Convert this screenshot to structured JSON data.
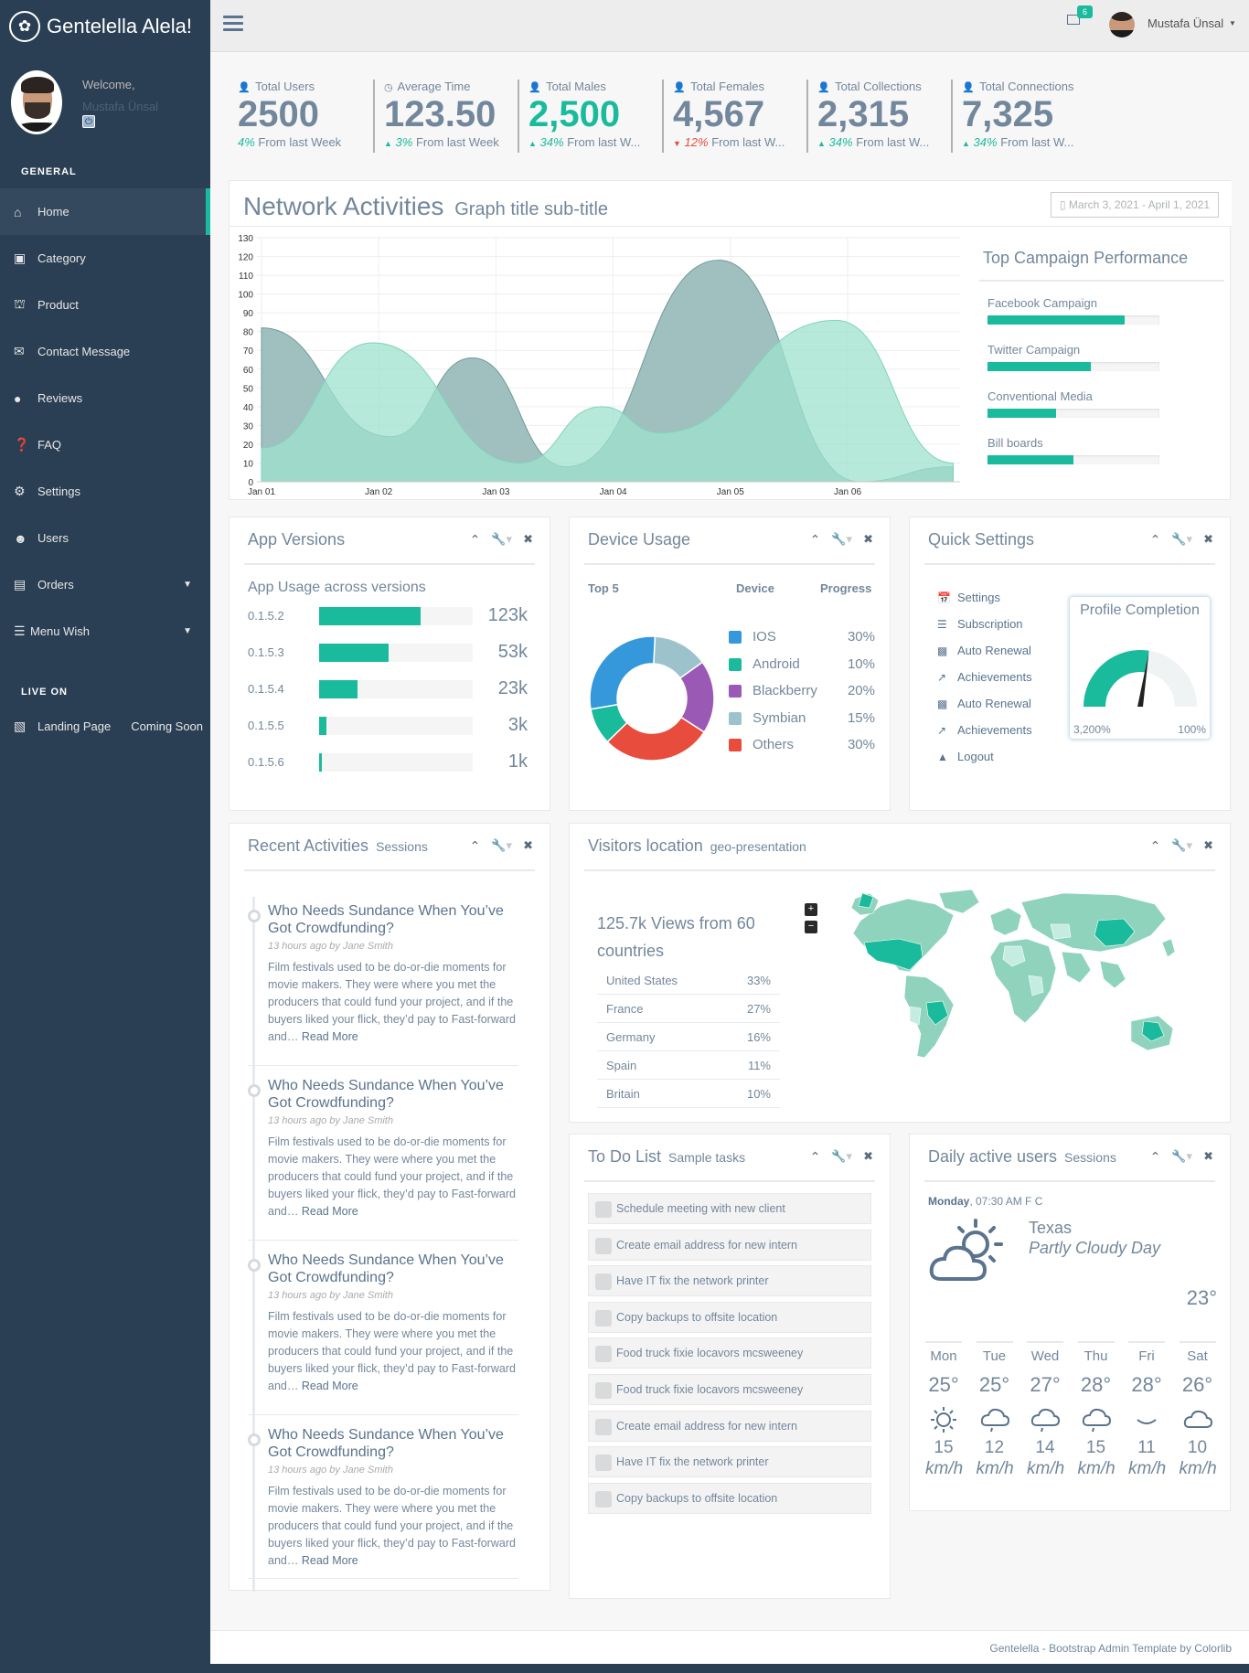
{
  "sidebar": {
    "brand": "Gentelella Alela!",
    "welcome": "Welcome,",
    "user_name": "Mustafa Ünsal",
    "general_title": "GENERAL",
    "live_title": "LIVE ON",
    "items": [
      {
        "label": "Home",
        "icon": "home-icon"
      },
      {
        "label": "Category",
        "icon": "category-icon"
      },
      {
        "label": "Product",
        "icon": "cart-icon"
      },
      {
        "label": "Contact Message",
        "icon": "envelope-icon"
      },
      {
        "label": "Reviews",
        "icon": "comment-icon"
      },
      {
        "label": "FAQ",
        "icon": "question-icon"
      },
      {
        "label": "Settings",
        "icon": "gear-icon"
      },
      {
        "label": "Users",
        "icon": "users-icon"
      },
      {
        "label": "Orders",
        "icon": "bag-icon"
      },
      {
        "label": "Menu Wish",
        "icon": "list-icon"
      }
    ],
    "live": {
      "label": "Landing Page",
      "extra": "Coming Soon"
    }
  },
  "topnav": {
    "mail_count": "6",
    "user_name": "Mustafa Ünsal"
  },
  "tiles": [
    {
      "title": "Total Users",
      "icon": "user-icon",
      "count": "2500",
      "pct": "4%",
      "text": " From last Week",
      "trend": "none",
      "color": "default"
    },
    {
      "title": "Average Time",
      "icon": "clock-icon",
      "count": "123.50",
      "pct": "3%",
      "text": " From last Week",
      "trend": "up",
      "color": "default"
    },
    {
      "title": "Total Males",
      "icon": "user-icon",
      "count": "2,500",
      "pct": "34%",
      "text": " From last W...",
      "trend": "up",
      "color": "green"
    },
    {
      "title": "Total Females",
      "icon": "user-icon",
      "count": "4,567",
      "pct": "12%",
      "text": " From last W...",
      "trend": "down",
      "color": "default"
    },
    {
      "title": "Total Collections",
      "icon": "user-icon",
      "count": "2,315",
      "pct": "34%",
      "text": " From last W...",
      "trend": "up",
      "color": "default"
    },
    {
      "title": "Total Connections",
      "icon": "user-icon",
      "count": "7,325",
      "pct": "34%",
      "text": " From last W...",
      "trend": "up",
      "color": "default"
    }
  ],
  "network": {
    "title": "Network Activities",
    "subtitle": "Graph title sub-title",
    "date_range": "March 3, 2021 - April 1, 2021",
    "campaign_title": "Top Campaign Performance",
    "campaigns": [
      {
        "label": "Facebook Campaign",
        "value": 80
      },
      {
        "label": "Twitter Campaign",
        "value": 60
      },
      {
        "label": "Conventional Media",
        "value": 40
      },
      {
        "label": "Bill boards",
        "value": 50
      }
    ]
  },
  "chart_data": {
    "type": "area",
    "x": [
      "Jan 01",
      "Jan 02",
      "Jan 03",
      "Jan 04",
      "Jan 05",
      "Jan 06"
    ],
    "yticks": [
      0,
      10,
      20,
      30,
      40,
      50,
      60,
      70,
      80,
      90,
      100,
      110,
      120,
      130
    ],
    "ylim": [
      0,
      130
    ],
    "series": [
      {
        "color": "#96B9B9",
        "points": [
          [
            0,
            82
          ],
          [
            1.1,
            24
          ],
          [
            1.8,
            66
          ],
          [
            2.6,
            8
          ],
          [
            3.9,
            118
          ],
          [
            5.1,
            0
          ],
          [
            5.9,
            8
          ]
        ]
      },
      {
        "color": "#9FE1CD",
        "points": [
          [
            0,
            18
          ],
          [
            0.95,
            74
          ],
          [
            2.2,
            10
          ],
          [
            2.9,
            40
          ],
          [
            3.4,
            26
          ],
          [
            4.9,
            86
          ],
          [
            5.9,
            10
          ]
        ]
      }
    ]
  },
  "app_versions": {
    "title": "App Versions",
    "subtitle": "App Usage across versions",
    "rows": [
      {
        "label": "0.1.5.2",
        "value": "123k",
        "fill": 66
      },
      {
        "label": "0.1.5.3",
        "value": "53k",
        "fill": 45
      },
      {
        "label": "0.1.5.4",
        "value": "23k",
        "fill": 25
      },
      {
        "label": "0.1.5.5",
        "value": "3k",
        "fill": 5
      },
      {
        "label": "0.1.5.6",
        "value": "1k",
        "fill": 2
      }
    ]
  },
  "device_usage": {
    "title": "Device Usage",
    "col_top": "Top 5",
    "col_device": "Device",
    "col_progress": "Progress",
    "rows": [
      {
        "name": "IOS",
        "pct": "30%",
        "color": "#3498DB",
        "donut": 30
      },
      {
        "name": "Android",
        "pct": "10%",
        "color": "#1ABB9C",
        "donut": 10
      },
      {
        "name": "Blackberry",
        "pct": "20%",
        "color": "#9B59B6",
        "donut": 20
      },
      {
        "name": "Symbian",
        "pct": "15%",
        "color": "#9CC2CB",
        "donut": 15
      },
      {
        "name": "Others",
        "pct": "30%",
        "color": "#E74C3C",
        "donut": 30
      }
    ]
  },
  "quick_settings": {
    "title": "Quick Settings",
    "items": [
      {
        "label": "Settings",
        "icon": "calendar-icon"
      },
      {
        "label": "Subscription",
        "icon": "bars-icon"
      },
      {
        "label": "Auto Renewal",
        "icon": "bar-chart-icon"
      },
      {
        "label": "Achievements",
        "icon": "line-chart-icon"
      },
      {
        "label": "Auto Renewal",
        "icon": "bar-chart-icon"
      },
      {
        "label": "Achievements",
        "icon": "line-chart-icon"
      },
      {
        "label": "Logout",
        "icon": "area-chart-icon"
      }
    ],
    "profile_title": "Profile Completion",
    "gauge_min": "3,200%",
    "gauge_max": "100%",
    "gauge_level": 0.55
  },
  "recent": {
    "title": "Recent Activities",
    "subtitle": "Sessions",
    "items": [
      {
        "title": "Who Needs Sundance When You’ve Got Crowdfunding?",
        "time": "13 hours ago by ",
        "author": "Jane Smith",
        "body": "Film festivals used to be do-or-die moments for movie makers. They were where you met the producers that could fund your project, and if the buyers liked your flick, they’d pay to Fast-forward and… ",
        "more": "Read More"
      },
      {
        "title": "Who Needs Sundance When You’ve Got Crowdfunding?",
        "time": "13 hours ago by ",
        "author": "Jane Smith",
        "body": "Film festivals used to be do-or-die moments for movie makers. They were where you met the producers that could fund your project, and if the buyers liked your flick, they’d pay to Fast-forward and… ",
        "more": "Read More"
      },
      {
        "title": "Who Needs Sundance When You’ve Got Crowdfunding?",
        "time": "13 hours ago by ",
        "author": "Jane Smith",
        "body": "Film festivals used to be do-or-die moments for movie makers. They were where you met the producers that could fund your project, and if the buyers liked your flick, they’d pay to Fast-forward and… ",
        "more": "Read More"
      },
      {
        "title": "Who Needs Sundance When You’ve Got Crowdfunding?",
        "time": "13 hours ago by ",
        "author": "Jane Smith",
        "body": "Film festivals used to be do-or-die moments for movie makers. They were where you met the producers that could fund your project, and if the buyers liked your flick, they’d pay to Fast-forward and… ",
        "more": "Read More"
      }
    ]
  },
  "visitors": {
    "title": "Visitors location",
    "subtitle": "geo-presentation",
    "summary": "125.7k Views from 60 countries",
    "zoom_in": "+",
    "zoom_out": "−",
    "rows": [
      {
        "country": "United States",
        "pct": "33%"
      },
      {
        "country": "France",
        "pct": "27%"
      },
      {
        "country": "Germany",
        "pct": "16%"
      },
      {
        "country": "Spain",
        "pct": "11%"
      },
      {
        "country": "Britain",
        "pct": "10%"
      }
    ]
  },
  "todo": {
    "title": "To Do List",
    "subtitle": "Sample tasks",
    "items": [
      "Schedule meeting with new client",
      "Create email address for new intern",
      "Have IT fix the network printer",
      "Copy backups to offsite location",
      "Food truck fixie locavors mcsweeney",
      "Food truck fixie locavors mcsweeney",
      "Create email address for new intern",
      "Have IT fix the network printer",
      "Copy backups to offsite location"
    ]
  },
  "daily": {
    "title": "Daily active users",
    "subtitle": "Sessions",
    "day": "Monday",
    "time": ", 07:30 AM F C",
    "city": "Texas",
    "condition": "Partly Cloudy Day",
    "temp": "23°",
    "unit": "km/h",
    "days": [
      {
        "name": "Mon",
        "temp": "25°",
        "icon": "sun-icon",
        "wind": "15"
      },
      {
        "name": "Tue",
        "temp": "25°",
        "icon": "rain-cloud-icon",
        "wind": "12"
      },
      {
        "name": "Wed",
        "temp": "27°",
        "icon": "rain-cloud-icon",
        "wind": "14"
      },
      {
        "name": "Thu",
        "temp": "28°",
        "icon": "rain-cloud-icon",
        "wind": "15"
      },
      {
        "name": "Fri",
        "temp": "28°",
        "icon": "moon-icon",
        "wind": "11"
      },
      {
        "name": "Sat",
        "temp": "26°",
        "icon": "cloud-icon",
        "wind": "10"
      }
    ]
  },
  "footer": {
    "text": "Gentelella - Bootstrap Admin Template by Colorlib"
  }
}
